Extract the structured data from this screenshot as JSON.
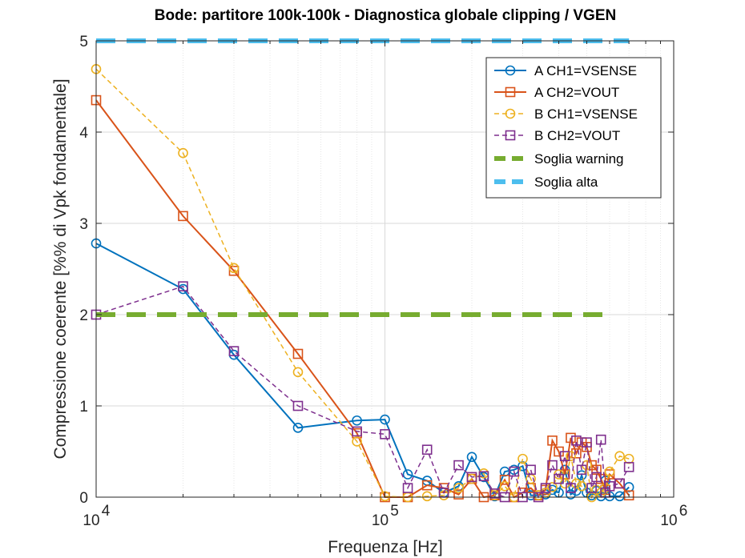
{
  "chart_data": {
    "type": "line",
    "title": "Bode: partitore 100k-100k - Diagnostica globale clipping / VGEN",
    "xlabel": "Frequenza [Hz]",
    "ylabel": "Compressione coerente [%% di Vpk fondamentale]",
    "xscale": "log",
    "xlim": [
      10000,
      1000000
    ],
    "ylim": [
      0,
      5
    ],
    "xticks": [
      {
        "value": 10000,
        "base": "10",
        "exp": "4"
      },
      {
        "value": 100000,
        "base": "10",
        "exp": "5"
      },
      {
        "value": 1000000,
        "base": "10",
        "exp": "6"
      }
    ],
    "yticks": [
      "0",
      "1",
      "2",
      "3",
      "4",
      "5"
    ],
    "grid": true,
    "legend_position": "top-right",
    "series": [
      {
        "name": "A CH1=VSENSE",
        "color": "#0072BD",
        "dash": "solid",
        "marker": "circle",
        "x": [
          10000,
          20000,
          30000,
          50000,
          80000,
          100000,
          120000,
          140000,
          160000,
          180000,
          200000,
          220000,
          240000,
          260000,
          280000,
          300000,
          320000,
          340000,
          360000,
          380000,
          400000,
          420000,
          440000,
          460000,
          480000,
          500000,
          520000,
          540000,
          560000,
          580000,
          600000,
          650000,
          700000
        ],
        "y": [
          2.78,
          2.28,
          1.56,
          0.76,
          0.84,
          0.85,
          0.25,
          0.18,
          0.05,
          0.12,
          0.44,
          0.22,
          0.01,
          0.28,
          0.3,
          0.34,
          0.02,
          0.02,
          0.03,
          0.08,
          0.05,
          0.3,
          0.03,
          0.07,
          0.24,
          0.05,
          0.02,
          0.07,
          0.01,
          0.18,
          0.01,
          0.01,
          0.11
        ]
      },
      {
        "name": "A CH2=VOUT",
        "color": "#D95319",
        "dash": "solid",
        "marker": "square",
        "x": [
          10000,
          20000,
          30000,
          50000,
          80000,
          100000,
          120000,
          140000,
          160000,
          180000,
          200000,
          220000,
          240000,
          260000,
          280000,
          300000,
          320000,
          340000,
          360000,
          380000,
          400000,
          420000,
          440000,
          460000,
          480000,
          500000,
          520000,
          540000,
          560000,
          580000,
          600000,
          650000,
          700000
        ],
        "y": [
          4.35,
          3.08,
          2.48,
          1.57,
          0.7,
          0.0,
          0.0,
          0.13,
          0.1,
          0.03,
          0.2,
          0.0,
          0.02,
          0.19,
          0.0,
          0.05,
          0.1,
          0.02,
          0.08,
          0.62,
          0.5,
          0.25,
          0.65,
          0.48,
          0.6,
          0.55,
          0.35,
          0.3,
          0.2,
          0.08,
          0.25,
          0.15,
          0.02
        ]
      },
      {
        "name": "B CH1=VSENSE",
        "color": "#EDB120",
        "dash": "dashed",
        "marker": "circle",
        "x": [
          10000,
          20000,
          30000,
          50000,
          80000,
          100000,
          120000,
          140000,
          160000,
          180000,
          200000,
          220000,
          240000,
          260000,
          280000,
          300000,
          320000,
          340000,
          360000,
          380000,
          400000,
          420000,
          440000,
          460000,
          480000,
          500000,
          520000,
          540000,
          560000,
          580000,
          600000,
          650000,
          700000
        ],
        "y": [
          4.69,
          3.77,
          2.51,
          1.37,
          0.61,
          0.01,
          0.0,
          0.01,
          0.02,
          0.1,
          0.2,
          0.26,
          0.02,
          0.12,
          0.0,
          0.42,
          0.2,
          0.02,
          0.05,
          0.11,
          0.25,
          0.15,
          0.45,
          0.15,
          0.12,
          0.35,
          0.0,
          0.08,
          0.05,
          0.1,
          0.28,
          0.45,
          0.42
        ]
      },
      {
        "name": "B CH2=VOUT",
        "color": "#7E2F8E",
        "dash": "dashed",
        "marker": "square",
        "x": [
          10000,
          20000,
          30000,
          50000,
          80000,
          100000,
          120000,
          140000,
          160000,
          180000,
          200000,
          220000,
          240000,
          260000,
          280000,
          300000,
          320000,
          340000,
          360000,
          380000,
          400000,
          420000,
          440000,
          460000,
          480000,
          500000,
          520000,
          540000,
          560000,
          580000,
          600000,
          650000,
          700000
        ],
        "y": [
          2.0,
          2.31,
          1.6,
          1.0,
          0.72,
          0.69,
          0.1,
          0.52,
          0.05,
          0.35,
          0.22,
          0.23,
          0.04,
          0.0,
          0.28,
          0.0,
          0.3,
          0.0,
          0.1,
          0.35,
          0.2,
          0.45,
          0.1,
          0.62,
          0.3,
          0.6,
          0.1,
          0.22,
          0.63,
          0.05,
          0.12,
          0.15,
          0.33
        ]
      },
      {
        "name": "Soglia warning",
        "color": "#77AC30",
        "dash": "dashed-thick",
        "marker": "none",
        "x": [
          10000,
          600000
        ],
        "y": [
          2,
          2
        ]
      },
      {
        "name": "Soglia alta",
        "color": "#4DBEEE",
        "dash": "dashed-thick",
        "marker": "none",
        "x": [
          10000,
          700000
        ],
        "y": [
          5,
          5
        ]
      }
    ]
  }
}
